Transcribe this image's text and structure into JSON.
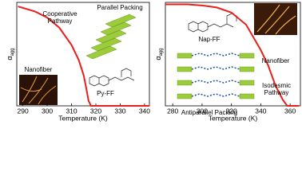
{
  "chart_data": [
    {
      "type": "line",
      "x": [
        288,
        295,
        300,
        305,
        310,
        313,
        315,
        316,
        317,
        318,
        325,
        335,
        342
      ],
      "values": [
        0.98,
        0.93,
        0.87,
        0.77,
        0.6,
        0.45,
        0.3,
        0.18,
        0.05,
        0,
        0,
        0,
        0
      ],
      "color": "#e8201c",
      "xlim": [
        287.5,
        342
      ],
      "ylim": [
        0,
        1.02
      ],
      "xticks": [
        290,
        300,
        310,
        320,
        330,
        340
      ],
      "xlabel": "Temperature (K)",
      "ylabel": "α",
      "ylabel_sub": "agg",
      "annotations": [
        {
          "lines": [
            "Cooperative",
            "Pathway"
          ]
        },
        {
          "lines": [
            "Parallel Packing"
          ]
        },
        {
          "lines": [
            "Nanofiber"
          ]
        },
        {
          "lines": [
            "Py-FF"
          ]
        }
      ]
    },
    {
      "type": "line",
      "x": [
        275,
        290,
        300,
        310,
        320,
        330,
        340,
        345,
        350,
        355,
        358,
        366
      ],
      "values": [
        1,
        1,
        0.99,
        0.97,
        0.92,
        0.8,
        0.55,
        0.4,
        0.2,
        0.06,
        0,
        0
      ],
      "color": "#e8201c",
      "xlim": [
        275,
        367
      ],
      "ylim": [
        0,
        1.02
      ],
      "xticks": [
        280,
        300,
        320,
        340,
        360
      ],
      "xlabel": "Temperature (K)",
      "ylabel": "α",
      "ylabel_sub": "agg",
      "annotations": [
        {
          "lines": [
            "Nap-FF"
          ]
        },
        {
          "lines": [
            "Nanofiber"
          ]
        },
        {
          "lines": [
            "Isodesmic",
            "Pathway"
          ]
        },
        {
          "lines": [
            "Antiparallel Packing"
          ]
        }
      ]
    }
  ]
}
